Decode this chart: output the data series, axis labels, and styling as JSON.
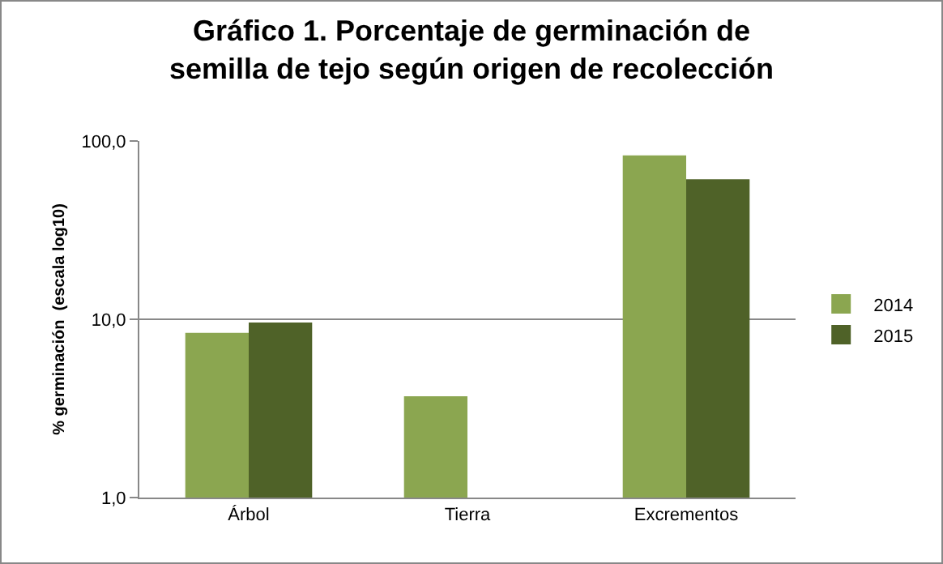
{
  "chart_data": {
    "type": "bar",
    "title": "Gráfico 1. Porcentaje de germinación de semilla de tejo según origen de recolección",
    "ylabel": "% germinación  (escala log10)",
    "categories": [
      "Árbol",
      "Tierra",
      "Excrementos"
    ],
    "series": [
      {
        "name": "2014",
        "color": "#8ba650",
        "values": [
          8.4,
          3.7,
          83
        ]
      },
      {
        "name": "2015",
        "color": "#4f6228",
        "values": [
          9.6,
          null,
          61
        ]
      }
    ],
    "log": true,
    "ylim": [
      1,
      100
    ],
    "yticks": [
      {
        "value": 1,
        "label": "1,0"
      },
      {
        "value": 10,
        "label": "10,0"
      },
      {
        "value": 100,
        "label": "100,0"
      }
    ],
    "grid": "y",
    "legend": "right"
  }
}
